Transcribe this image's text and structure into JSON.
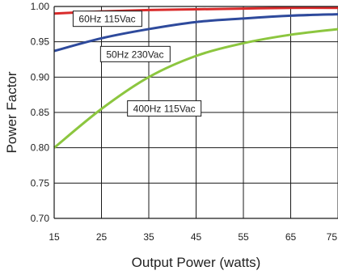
{
  "chart_data": {
    "type": "line",
    "title": "",
    "xlabel": "Output Power (watts)",
    "ylabel": "Power Factor",
    "xlim": [
      15,
      75
    ],
    "ylim": [
      0.7,
      1.0
    ],
    "x_ticks": [
      "15",
      "25",
      "35",
      "45",
      "55",
      "65",
      "75"
    ],
    "y_ticks": [
      "0.70",
      "0.75",
      "0.80",
      "0.85",
      "0.90",
      "0.95",
      "1.00"
    ],
    "grid": true,
    "legend": "none",
    "series": [
      {
        "name": "60Hz 115Vac",
        "color": "#d92b2b",
        "x": [
          15,
          25,
          35,
          45,
          55,
          65,
          75
        ],
        "y": [
          0.99,
          0.993,
          0.995,
          0.996,
          0.997,
          0.998,
          0.998
        ]
      },
      {
        "name": "50Hz 230Vac",
        "color": "#2e4a9c",
        "x": [
          15,
          25,
          35,
          45,
          55,
          65,
          75
        ],
        "y": [
          0.937,
          0.955,
          0.968,
          0.978,
          0.983,
          0.987,
          0.989
        ]
      },
      {
        "name": "400Hz 115Vac",
        "color": "#8cc63f",
        "x": [
          15,
          25,
          35,
          45,
          55,
          65,
          75
        ],
        "y": [
          0.8,
          0.855,
          0.9,
          0.93,
          0.948,
          0.96,
          0.968
        ]
      }
    ]
  }
}
